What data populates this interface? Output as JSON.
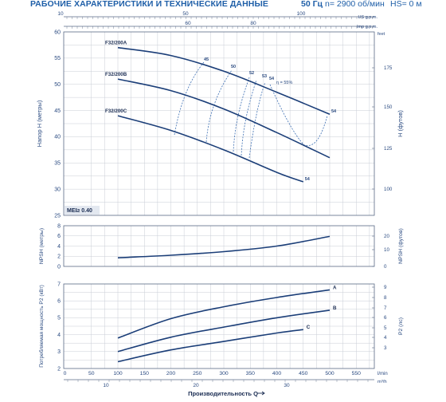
{
  "header": {
    "title": "РАБОЧИЕ ХАРАКТЕРИСТИКИ И ТЕХНИЧЕСКИЕ ДАННЫЕ",
    "frequency": "50 Гц",
    "speed": "n= 2900 об/мин",
    "hs": "HS= 0 м"
  },
  "chart_data": [
    {
      "panel": "head",
      "type": "line",
      "ylabel": "Напор H (метры)",
      "ylabel_right": "H (футов)",
      "top_axis_us": {
        "label": "US g.p.m.",
        "ticks": [
          "10",
          "50",
          "100"
        ]
      },
      "top_axis_imp": {
        "label": "Imp g.p.m.",
        "ticks": [
          "60",
          "80"
        ]
      },
      "ylim": [
        25,
        60
      ],
      "yticks": [
        "25",
        "30",
        "35",
        "40",
        "45",
        "50",
        "55",
        "60"
      ],
      "y2_unit": "feet",
      "y2_ticks": [
        "100",
        "125",
        "150",
        "175"
      ],
      "badge": "MEI≥ 0.40",
      "series": [
        {
          "name": "F32/200A",
          "x": [
            100,
            200,
            300,
            400,
            500
          ],
          "y": [
            57,
            55.5,
            52.5,
            48.5,
            44.3
          ],
          "end_label": "54"
        },
        {
          "name": "F32/200B",
          "x": [
            100,
            200,
            300,
            400,
            500
          ],
          "y": [
            51,
            48.8,
            45.3,
            40.8,
            36
          ]
        },
        {
          "name": "F32/200C",
          "x": [
            100,
            200,
            300,
            400,
            450
          ],
          "y": [
            44,
            41.2,
            37.5,
            33.2,
            31.4
          ],
          "end_label": "54"
        }
      ],
      "efficiency_labels": [
        "45",
        "50",
        "52",
        "53",
        "54",
        "η = 55%"
      ]
    },
    {
      "panel": "npsh",
      "type": "line",
      "ylabel": "NPSH (метры)",
      "ylabel_right": "NPSH (футов)",
      "ylim": [
        0,
        8
      ],
      "yticks": [
        "0",
        "2",
        "4",
        "6",
        "8"
      ],
      "y2_ticks": [
        "0",
        "10",
        "20"
      ],
      "series": [
        {
          "x": [
            100,
            200,
            300,
            400,
            500
          ],
          "y": [
            1.7,
            2.2,
            2.9,
            4.0,
            5.9
          ]
        }
      ]
    },
    {
      "panel": "power",
      "type": "line",
      "ylabel": "Потребляемая мощность P2 (кВт)",
      "ylabel_right": "P2 (лс)",
      "ylim": [
        2,
        7
      ],
      "yticks": [
        "2",
        "3",
        "4",
        "5",
        "6",
        "7"
      ],
      "y2_ticks": [
        "3",
        "4",
        "5",
        "6",
        "7",
        "8",
        "9"
      ],
      "xlabel": "Производительность Q",
      "x_unit": "l/min",
      "x_unit2": "m³/h",
      "xticks": [
        "0",
        "50",
        "100",
        "150",
        "200",
        "250",
        "300",
        "350",
        "400",
        "450",
        "500",
        "550"
      ],
      "xticks_m3h": [
        "10",
        "20",
        "30"
      ],
      "series": [
        {
          "name": "A",
          "x": [
            100,
            200,
            300,
            400,
            500
          ],
          "y": [
            3.8,
            4.95,
            5.65,
            6.2,
            6.65
          ]
        },
        {
          "name": "B",
          "x": [
            100,
            200,
            300,
            400,
            500
          ],
          "y": [
            3.0,
            3.85,
            4.45,
            5.0,
            5.45
          ]
        },
        {
          "name": "C",
          "x": [
            100,
            200,
            300,
            400,
            450
          ],
          "y": [
            2.4,
            3.1,
            3.6,
            4.1,
            4.3
          ]
        }
      ]
    }
  ]
}
